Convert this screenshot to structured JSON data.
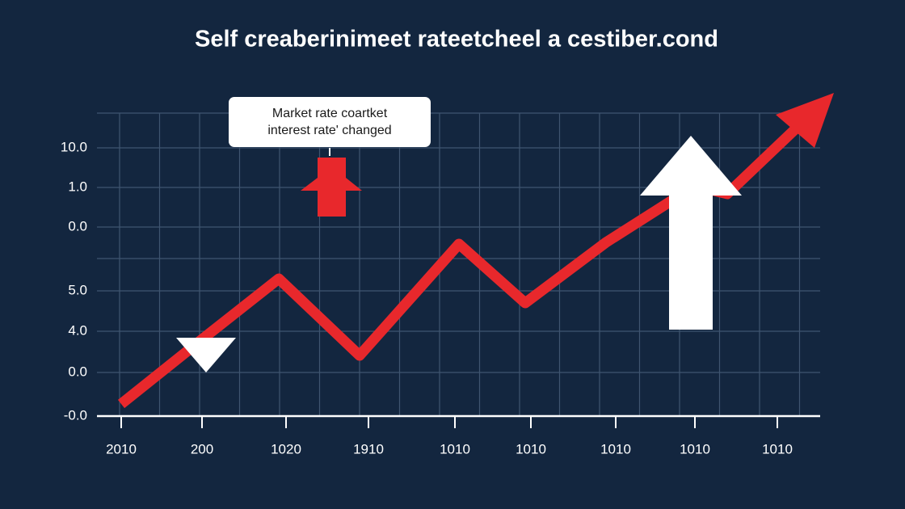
{
  "title": "Self creaberinimeet rateetcheel a cestiber.cond",
  "callout": [
    "Market rate coartket",
    "interest rate' changed"
  ],
  "y_labels": [
    "10.0",
    "1.0",
    "0.0",
    "5.0",
    "4.0",
    "0.0",
    "-0.0"
  ],
  "x_labels": [
    "2010",
    "200",
    "1020",
    "1910",
    "1010",
    "1010",
    "1010",
    "1010",
    "1010"
  ]
}
